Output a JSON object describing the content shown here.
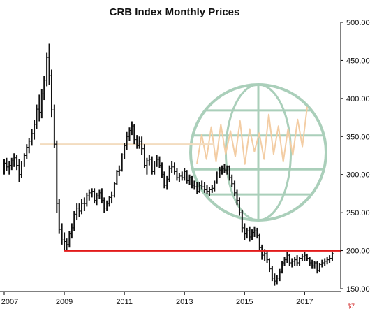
{
  "chart_data": {
    "type": "ohlc",
    "title": "CRB Index Monthly Prices",
    "xlabel": "",
    "ylabel": "",
    "x_tick_labels": [
      "2007",
      "2009",
      "2011",
      "2013",
      "2015",
      "2017"
    ],
    "x_range": [
      2007.0,
      2018.2
    ],
    "y_tick_labels": [
      "500.00",
      "450.00",
      "400.00",
      "350.00",
      "300.00",
      "250.00",
      "200.00",
      "150.00"
    ],
    "ylim": [
      150,
      500
    ],
    "y_axis_side": "right",
    "grid": false,
    "bar_color": "#111111",
    "series": [
      {
        "values": [
          [
            2007.0,
            305,
            320,
            300,
            315
          ],
          [
            2007.08,
            315,
            322,
            305,
            310
          ],
          [
            2007.17,
            310,
            318,
            300,
            312
          ],
          [
            2007.25,
            312,
            322,
            306,
            318
          ],
          [
            2007.33,
            318,
            328,
            310,
            322
          ],
          [
            2007.42,
            322,
            326,
            306,
            312
          ],
          [
            2007.5,
            312,
            320,
            290,
            300
          ],
          [
            2007.58,
            300,
            318,
            296,
            314
          ],
          [
            2007.67,
            314,
            328,
            310,
            325
          ],
          [
            2007.75,
            325,
            340,
            320,
            336
          ],
          [
            2007.83,
            336,
            348,
            328,
            344
          ],
          [
            2007.92,
            344,
            360,
            338,
            354
          ],
          [
            2008.0,
            354,
            372,
            346,
            366
          ],
          [
            2008.08,
            366,
            392,
            360,
            386
          ],
          [
            2008.17,
            386,
            405,
            370,
            382
          ],
          [
            2008.25,
            382,
            412,
            374,
            406
          ],
          [
            2008.33,
            406,
            430,
            398,
            424
          ],
          [
            2008.42,
            424,
            460,
            416,
            454
          ],
          [
            2008.5,
            454,
            472,
            418,
            430
          ],
          [
            2008.58,
            430,
            438,
            375,
            385
          ],
          [
            2008.67,
            385,
            392,
            335,
            340
          ],
          [
            2008.75,
            340,
            345,
            250,
            262
          ],
          [
            2008.83,
            262,
            268,
            222,
            228
          ],
          [
            2008.92,
            228,
            236,
            208,
            214
          ],
          [
            2009.0,
            214,
            224,
            200,
            212
          ],
          [
            2009.08,
            212,
            216,
            200,
            208
          ],
          [
            2009.17,
            208,
            226,
            204,
            222
          ],
          [
            2009.25,
            222,
            236,
            216,
            230
          ],
          [
            2009.33,
            230,
            252,
            226,
            248
          ],
          [
            2009.42,
            248,
            262,
            240,
            256
          ],
          [
            2009.5,
            256,
            262,
            244,
            252
          ],
          [
            2009.58,
            252,
            268,
            248,
            262
          ],
          [
            2009.67,
            262,
            270,
            252,
            262
          ],
          [
            2009.75,
            262,
            276,
            258,
            272
          ],
          [
            2009.83,
            272,
            280,
            266,
            276
          ],
          [
            2009.92,
            276,
            282,
            270,
            278
          ],
          [
            2010.0,
            278,
            282,
            262,
            266
          ],
          [
            2010.08,
            266,
            276,
            260,
            272
          ],
          [
            2010.17,
            272,
            280,
            268,
            276
          ],
          [
            2010.25,
            276,
            282,
            262,
            266
          ],
          [
            2010.33,
            266,
            270,
            250,
            256
          ],
          [
            2010.42,
            256,
            266,
            252,
            262
          ],
          [
            2010.5,
            262,
            272,
            258,
            270
          ],
          [
            2010.58,
            270,
            278,
            262,
            272
          ],
          [
            2010.67,
            272,
            290,
            270,
            288
          ],
          [
            2010.75,
            288,
            306,
            286,
            304
          ],
          [
            2010.83,
            304,
            312,
            298,
            306
          ],
          [
            2010.92,
            306,
            328,
            304,
            326
          ],
          [
            2011.0,
            326,
            342,
            320,
            338
          ],
          [
            2011.08,
            338,
            356,
            332,
            350
          ],
          [
            2011.17,
            350,
            362,
            344,
            358
          ],
          [
            2011.25,
            358,
            370,
            352,
            364
          ],
          [
            2011.33,
            364,
            366,
            340,
            346
          ],
          [
            2011.42,
            346,
            352,
            334,
            338
          ],
          [
            2011.5,
            338,
            350,
            334,
            344
          ],
          [
            2011.58,
            344,
            350,
            326,
            334
          ],
          [
            2011.67,
            334,
            340,
            308,
            312
          ],
          [
            2011.75,
            312,
            322,
            300,
            318
          ],
          [
            2011.83,
            318,
            326,
            312,
            320
          ],
          [
            2011.92,
            320,
            324,
            300,
            304
          ],
          [
            2012.0,
            304,
            318,
            300,
            314
          ],
          [
            2012.08,
            314,
            326,
            310,
            320
          ],
          [
            2012.17,
            320,
            324,
            308,
            312
          ],
          [
            2012.25,
            312,
            316,
            296,
            300
          ],
          [
            2012.33,
            300,
            304,
            282,
            286
          ],
          [
            2012.42,
            286,
            298,
            280,
            294
          ],
          [
            2012.5,
            294,
            312,
            290,
            308
          ],
          [
            2012.58,
            308,
            318,
            302,
            310
          ],
          [
            2012.67,
            310,
            316,
            300,
            304
          ],
          [
            2012.75,
            304,
            308,
            292,
            296
          ],
          [
            2012.83,
            296,
            302,
            290,
            298
          ],
          [
            2012.92,
            298,
            304,
            292,
            296
          ],
          [
            2013.0,
            296,
            308,
            292,
            304
          ],
          [
            2013.08,
            304,
            306,
            288,
            292
          ],
          [
            2013.17,
            292,
            300,
            286,
            296
          ],
          [
            2013.25,
            296,
            298,
            282,
            286
          ],
          [
            2013.33,
            286,
            292,
            280,
            284
          ],
          [
            2013.42,
            284,
            290,
            274,
            278
          ],
          [
            2013.5,
            278,
            290,
            276,
            286
          ],
          [
            2013.58,
            286,
            292,
            280,
            284
          ],
          [
            2013.67,
            284,
            290,
            276,
            280
          ],
          [
            2013.75,
            280,
            286,
            274,
            278
          ],
          [
            2013.83,
            278,
            284,
            272,
            280
          ],
          [
            2013.92,
            280,
            286,
            276,
            282
          ],
          [
            2014.0,
            282,
            292,
            278,
            290
          ],
          [
            2014.08,
            290,
            304,
            288,
            302
          ],
          [
            2014.17,
            302,
            310,
            296,
            306
          ],
          [
            2014.25,
            306,
            312,
            300,
            308
          ],
          [
            2014.33,
            308,
            314,
            302,
            306
          ],
          [
            2014.42,
            306,
            312,
            300,
            310
          ],
          [
            2014.5,
            310,
            312,
            292,
            296
          ],
          [
            2014.58,
            296,
            300,
            284,
            288
          ],
          [
            2014.67,
            288,
            292,
            272,
            276
          ],
          [
            2014.75,
            276,
            280,
            260,
            266
          ],
          [
            2014.83,
            266,
            270,
            246,
            250
          ],
          [
            2014.92,
            250,
            254,
            224,
            230
          ],
          [
            2015.0,
            230,
            236,
            214,
            222
          ],
          [
            2015.08,
            222,
            230,
            216,
            226
          ],
          [
            2015.17,
            226,
            232,
            212,
            218
          ],
          [
            2015.25,
            218,
            228,
            214,
            224
          ],
          [
            2015.33,
            224,
            232,
            218,
            226
          ],
          [
            2015.42,
            226,
            230,
            216,
            220
          ],
          [
            2015.5,
            220,
            222,
            200,
            204
          ],
          [
            2015.58,
            204,
            208,
            188,
            194
          ],
          [
            2015.67,
            194,
            202,
            186,
            196
          ],
          [
            2015.75,
            196,
            200,
            184,
            188
          ],
          [
            2015.83,
            188,
            190,
            172,
            176
          ],
          [
            2015.92,
            176,
            180,
            160,
            164
          ],
          [
            2016.0,
            164,
            170,
            154,
            160
          ],
          [
            2016.08,
            160,
            168,
            156,
            164
          ],
          [
            2016.17,
            164,
            176,
            160,
            172
          ],
          [
            2016.25,
            172,
            186,
            170,
            184
          ],
          [
            2016.33,
            184,
            192,
            180,
            188
          ],
          [
            2016.42,
            188,
            198,
            184,
            194
          ],
          [
            2016.5,
            194,
            196,
            180,
            184
          ],
          [
            2016.58,
            184,
            190,
            178,
            186
          ],
          [
            2016.67,
            186,
            192,
            180,
            188
          ],
          [
            2016.75,
            188,
            194,
            180,
            184
          ],
          [
            2016.83,
            184,
            192,
            180,
            190
          ],
          [
            2016.92,
            190,
            196,
            186,
            192
          ],
          [
            2017.0,
            192,
            198,
            186,
            194
          ],
          [
            2017.08,
            194,
            196,
            186,
            190
          ],
          [
            2017.17,
            190,
            192,
            180,
            184
          ],
          [
            2017.25,
            184,
            188,
            176,
            180
          ],
          [
            2017.33,
            180,
            186,
            176,
            184
          ],
          [
            2017.42,
            184,
            186,
            170,
            174
          ],
          [
            2017.5,
            174,
            184,
            172,
            182
          ],
          [
            2017.58,
            182,
            188,
            178,
            184
          ],
          [
            2017.67,
            184,
            190,
            180,
            186
          ],
          [
            2017.75,
            186,
            192,
            182,
            188
          ],
          [
            2017.83,
            188,
            194,
            184,
            190
          ],
          [
            2017.92,
            190,
            198,
            186,
            196
          ]
        ]
      }
    ],
    "annotations": [
      {
        "type": "horizontal_line",
        "y": 200,
        "x_start": 2009.0,
        "x_end": 2018.2,
        "color": "#e21b1b"
      },
      {
        "type": "horizontal_line",
        "y": 340,
        "x_start": 2008.2,
        "x_end": 2014.0,
        "color": "#f3dcbf"
      }
    ],
    "watermark_globe_color": "#9cc7ae",
    "watermark_trace_color": "#f1c595",
    "footer_mark": "$7"
  }
}
